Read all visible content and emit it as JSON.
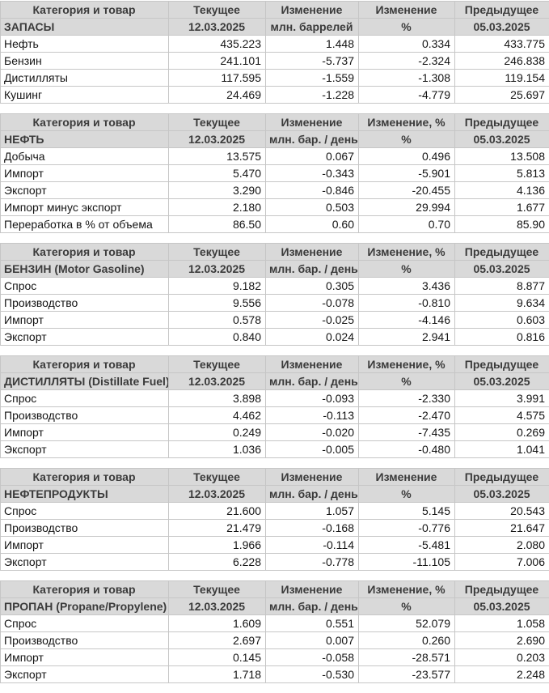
{
  "colors": {
    "header_bg": "#d9d9d9",
    "header_text": "#3b3b3b",
    "positive": "#009e00",
    "negative": "#e80000",
    "border": "#c6c6c6"
  },
  "tables": [
    {
      "key": "inventories",
      "header": [
        "Категория и товар",
        "Текущее",
        "Изменение",
        "Изменение",
        "Предыдущее"
      ],
      "subheader": [
        "ЗАПАСЫ",
        "12.03.2025",
        "млн. баррелей",
        "%",
        "05.03.2025"
      ],
      "rows": [
        {
          "label": "Нефть",
          "current": "435.223",
          "change": "1.448",
          "change_pct": "0.334",
          "previous": "433.775"
        },
        {
          "label": "Бензин",
          "current": "241.101",
          "change": "-5.737",
          "change_pct": "-2.324",
          "previous": "246.838"
        },
        {
          "label": "Дистилляты",
          "current": "117.595",
          "change": "-1.559",
          "change_pct": "-1.308",
          "previous": "119.154"
        },
        {
          "label": "Кушинг",
          "current": "24.469",
          "change": "-1.228",
          "change_pct": "-4.779",
          "previous": "25.697"
        }
      ]
    },
    {
      "key": "crude-oil",
      "header": [
        "Категория и товар",
        "Текущее",
        "Изменение",
        "Изменение, %",
        "Предыдущее"
      ],
      "subheader": [
        "НЕФТЬ",
        "12.03.2025",
        "млн. бар. / день",
        "%",
        "05.03.2025"
      ],
      "rows": [
        {
          "label": "Добыча",
          "current": "13.575",
          "change": "0.067",
          "change_pct": "0.496",
          "previous": "13.508"
        },
        {
          "label": "Импорт",
          "current": "5.470",
          "change": "-0.343",
          "change_pct": "-5.901",
          "previous": "5.813"
        },
        {
          "label": "Экспорт",
          "current": "3.290",
          "change": "-0.846",
          "change_pct": "-20.455",
          "previous": "4.136"
        },
        {
          "label": "Импорт минус экспорт",
          "current": "2.180",
          "change": "0.503",
          "change_pct": "29.994",
          "previous": "1.677"
        },
        {
          "label": "Переработка в % от объема",
          "current": "86.50",
          "change": "0.60",
          "change_pct": "0.70",
          "previous": "85.90"
        }
      ]
    },
    {
      "key": "gasoline",
      "header": [
        "Категория и товар",
        "Текущее",
        "Изменение",
        "Изменение, %",
        "Предыдущее"
      ],
      "subheader": [
        "БЕНЗИН (Motor Gasoline)",
        "12.03.2025",
        "млн. бар. / день",
        "%",
        "05.03.2025"
      ],
      "rows": [
        {
          "label": "Спрос",
          "current": "9.182",
          "change": "0.305",
          "change_pct": "3.436",
          "previous": "8.877"
        },
        {
          "label": "Производство",
          "current": "9.556",
          "change": "-0.078",
          "change_pct": "-0.810",
          "previous": "9.634"
        },
        {
          "label": "Импорт",
          "current": "0.578",
          "change": "-0.025",
          "change_pct": "-4.146",
          "previous": "0.603"
        },
        {
          "label": "Экспорт",
          "current": "0.840",
          "change": "0.024",
          "change_pct": "2.941",
          "previous": "0.816"
        }
      ]
    },
    {
      "key": "distillates",
      "header": [
        "Категория и товар",
        "Текущее",
        "Изменение",
        "Изменение, %",
        "Предыдущее"
      ],
      "subheader": [
        "ДИСТИЛЛЯТЫ (Distillate Fuel)",
        "12.03.2025",
        "млн. бар. / день",
        "%",
        "05.03.2025"
      ],
      "rows": [
        {
          "label": "Спрос",
          "current": "3.898",
          "change": "-0.093",
          "change_pct": "-2.330",
          "previous": "3.991"
        },
        {
          "label": "Производство",
          "current": "4.462",
          "change": "-0.113",
          "change_pct": "-2.470",
          "previous": "4.575"
        },
        {
          "label": "Импорт",
          "current": "0.249",
          "change": "-0.020",
          "change_pct": "-7.435",
          "previous": "0.269"
        },
        {
          "label": "Экспорт",
          "current": "1.036",
          "change": "-0.005",
          "change_pct": "-0.480",
          "previous": "1.041"
        }
      ]
    },
    {
      "key": "petroleum-products",
      "header": [
        "Категория и товар",
        "Текущее",
        "Изменение",
        "Изменение",
        "Предыдущее"
      ],
      "subheader": [
        "НЕФТЕПРОДУКТЫ",
        "12.03.2025",
        "млн. бар. / день",
        "%",
        "05.03.2025"
      ],
      "rows": [
        {
          "label": "Спрос",
          "current": "21.600",
          "change": "1.057",
          "change_pct": "5.145",
          "previous": "20.543"
        },
        {
          "label": "Производство",
          "current": "21.479",
          "change": "-0.168",
          "change_pct": "-0.776",
          "previous": "21.647"
        },
        {
          "label": "Импорт",
          "current": "1.966",
          "change": "-0.114",
          "change_pct": "-5.481",
          "previous": "2.080"
        },
        {
          "label": "Экспорт",
          "current": "6.228",
          "change": "-0.778",
          "change_pct": "-11.105",
          "previous": "7.006"
        }
      ]
    },
    {
      "key": "propane",
      "header": [
        "Категория и товар",
        "Текущее",
        "Изменение",
        "Изменение, %",
        "Предыдущее"
      ],
      "subheader": [
        "ПРОПАН (Propane/Propylene)",
        "12.03.2025",
        "млн. бар. / день",
        "%",
        "05.03.2025"
      ],
      "rows": [
        {
          "label": "Спрос",
          "current": "1.609",
          "change": "0.551",
          "change_pct": "52.079",
          "previous": "1.058"
        },
        {
          "label": "Производство",
          "current": "2.697",
          "change": "0.007",
          "change_pct": "0.260",
          "previous": "2.690"
        },
        {
          "label": "Импорт",
          "current": "0.145",
          "change": "-0.058",
          "change_pct": "-28.571",
          "previous": "0.203"
        },
        {
          "label": "Экспорт",
          "current": "1.718",
          "change": "-0.530",
          "change_pct": "-23.577",
          "previous": "2.248"
        }
      ]
    }
  ]
}
